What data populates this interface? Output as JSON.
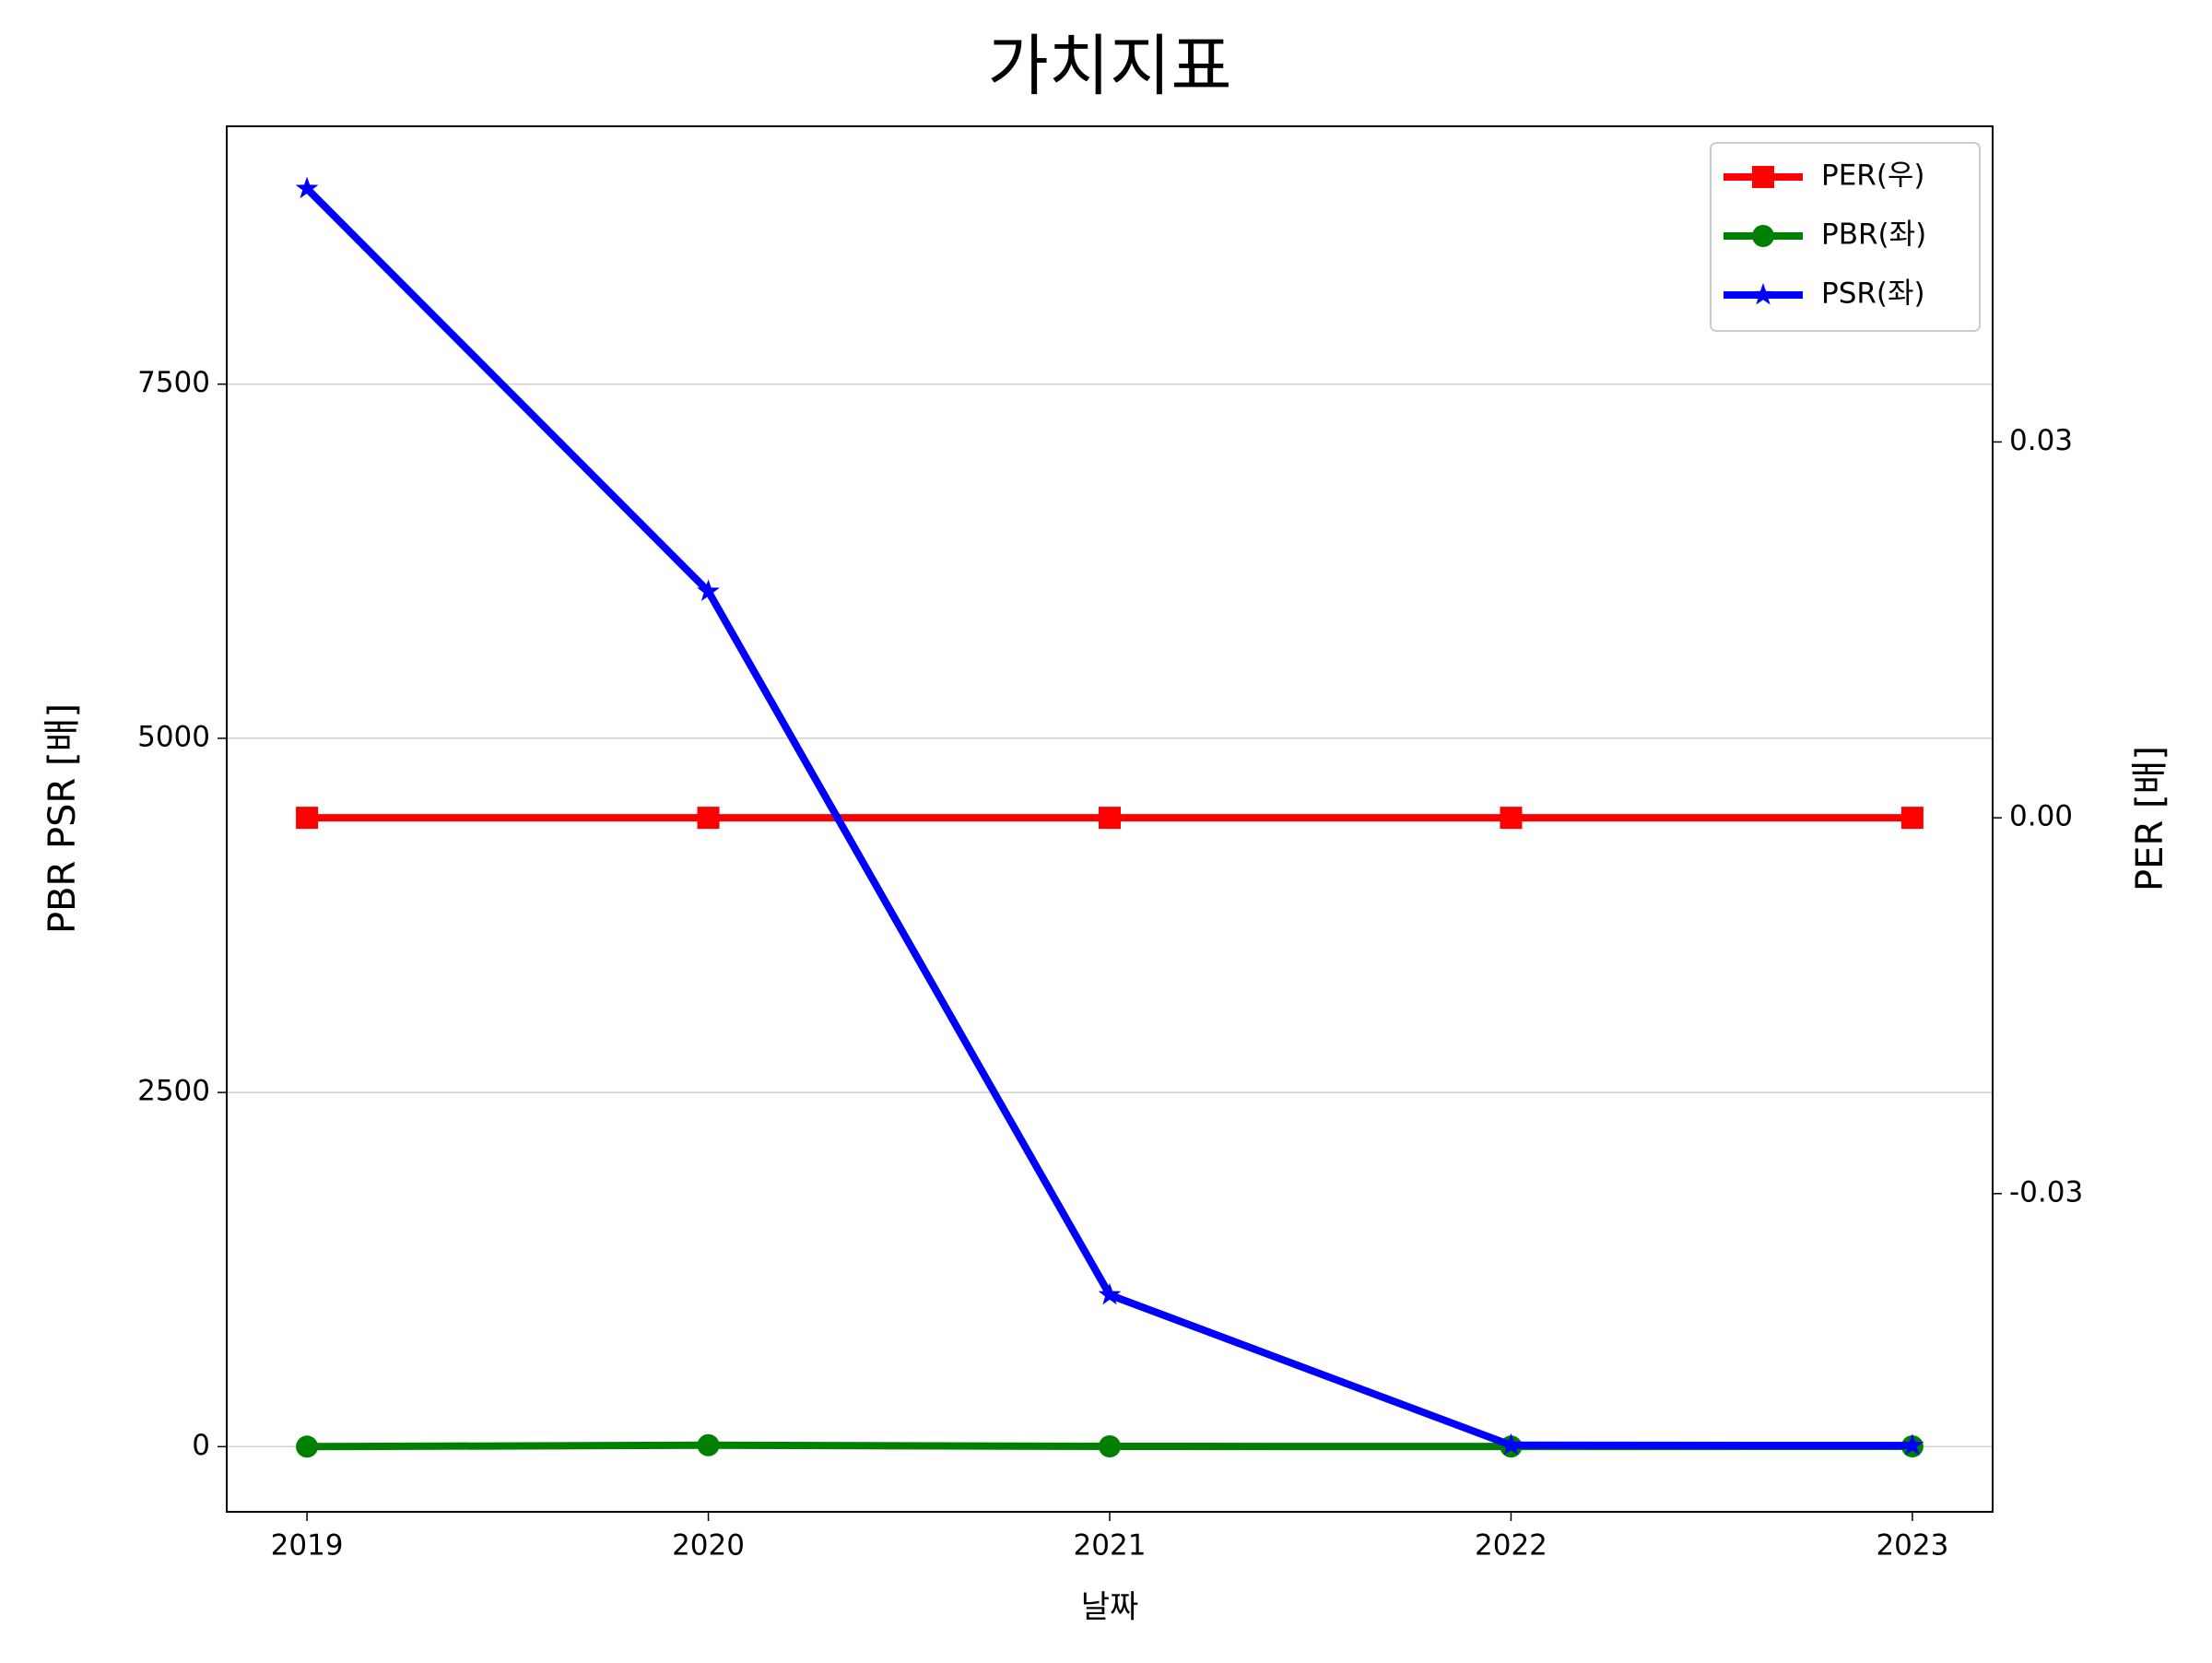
{
  "chart_data": {
    "type": "line",
    "title": "가치지표",
    "xlabel": "날짜",
    "ylabel": "PBR PSR [배]",
    "y2label": "PER [배]",
    "ylabel_color": "#008000",
    "y2label_color": "#ff0000",
    "x": [
      2019,
      2020,
      2021,
      2022,
      2023
    ],
    "series": [
      {
        "name": "PER(우)",
        "color": "#ff0000",
        "marker": "square",
        "axis": "y2",
        "values": [
          0,
          0,
          0,
          0,
          0
        ]
      },
      {
        "name": "PBR(좌)",
        "color": "#008000",
        "marker": "circle",
        "values": [
          0,
          10,
          2,
          1,
          2
        ]
      },
      {
        "name": "PSR(좌)",
        "color": "#0000ff",
        "marker": "star",
        "values": [
          8880,
          6037,
          1071,
          10,
          8
        ]
      }
    ],
    "xlim": [
      2018.8,
      2023.2
    ],
    "xticks": [
      2019,
      2020,
      2021,
      2022,
      2023
    ],
    "ylim": [
      -460,
      9320
    ],
    "yticks": [
      0,
      2500,
      5000,
      7500
    ],
    "y2lim": [
      -0.0554,
      0.0552
    ],
    "y2ticks": [
      -0.03,
      {
        "value": 0,
        "label": "0.00"
      },
      0.03
    ],
    "grid": true,
    "legend": "upper right"
  }
}
